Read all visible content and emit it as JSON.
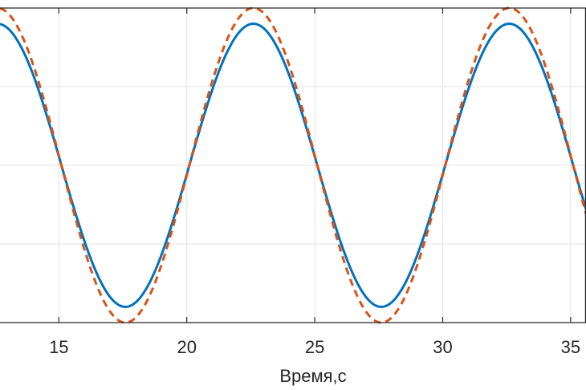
{
  "chart_data": {
    "type": "line",
    "xlabel": "Время,с",
    "ylabel": "",
    "title": "",
    "xlim": [
      12.7,
      35.6
    ],
    "ylim": [
      -1.0,
      1.0
    ],
    "x_ticks": [
      15,
      20,
      25,
      30,
      35
    ],
    "x_tick_labels": [
      "15",
      "20",
      "25",
      "30",
      "35"
    ],
    "grid": true,
    "period": 10,
    "phase_peak_x": 22.6,
    "series": [
      {
        "name": "",
        "style": "solid",
        "color": "#0072BD",
        "amplitude": 0.9
      },
      {
        "name": "",
        "style": "dashed",
        "color": "#D95319",
        "amplitude": 1.0
      }
    ]
  }
}
